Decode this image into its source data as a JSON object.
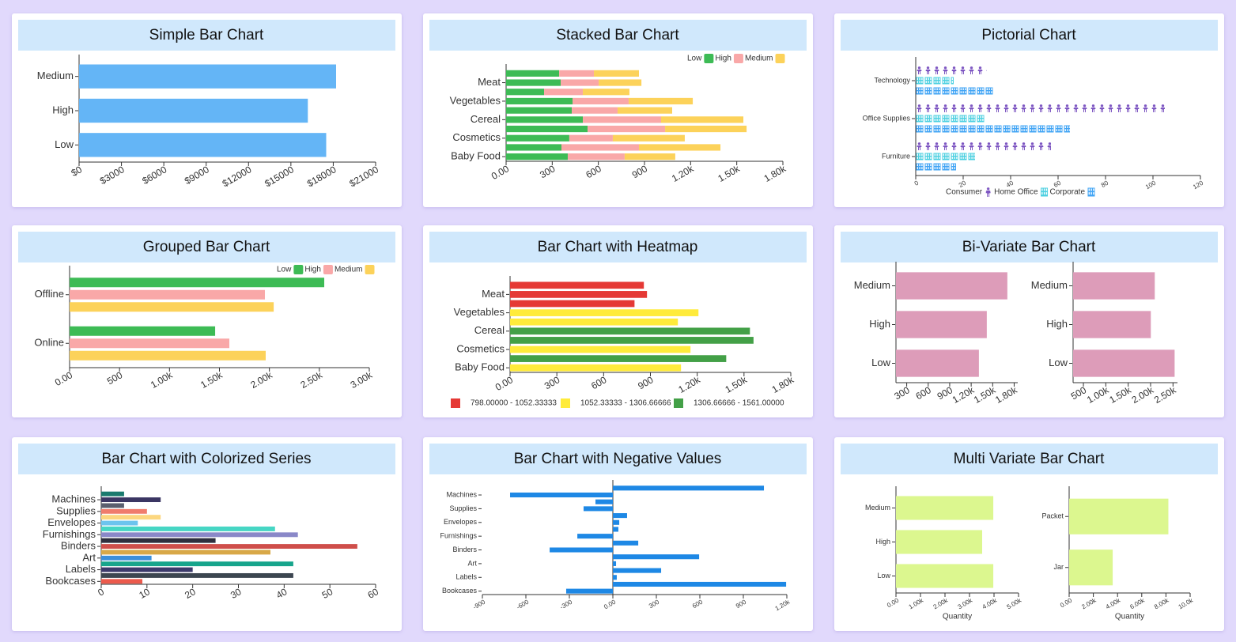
{
  "chart_data": [
    {
      "type": "bar",
      "title": "Simple Bar Chart",
      "categories": [
        "Medium",
        "High",
        "Low"
      ],
      "values": [
        18200,
        16200,
        17500
      ],
      "color": "#64b5f6",
      "xlim": [
        0,
        21000
      ],
      "xticks": [
        {
          "value": 0,
          "label": "$0"
        },
        {
          "value": 3000,
          "label": "$3000"
        },
        {
          "value": 6000,
          "label": "$6000"
        },
        {
          "value": 9000,
          "label": "$9000"
        },
        {
          "value": 12000,
          "label": "$12000"
        },
        {
          "value": 15000,
          "label": "$15000"
        },
        {
          "value": 18000,
          "label": "$18000"
        },
        {
          "value": 21000,
          "label": "$21000"
        }
      ]
    },
    {
      "type": "stacked_bar",
      "title": "Stacked Bar Chart",
      "categories": [
        null,
        "Meat",
        null,
        "Vegetables",
        null,
        "Cereal",
        null,
        "Cosmetics",
        null,
        "Baby Food"
      ],
      "series": [
        {
          "name": "Low",
          "color": "#3dbb55",
          "values": [
            345,
            355,
            247,
            432,
            427,
            499,
            530,
            411,
            360,
            401
          ]
        },
        {
          "name": "High",
          "color": "#f9a8a8",
          "values": [
            226,
            247,
            252,
            365,
            298,
            509,
            504,
            283,
            504,
            370
          ]
        },
        {
          "name": "Medium",
          "color": "#fcd25a",
          "values": [
            293,
            278,
            303,
            417,
            355,
            535,
            530,
            468,
            530,
            329
          ]
        }
      ],
      "xlim": [
        0,
        1800
      ],
      "xticks": [
        {
          "value": 0,
          "label": "0.00"
        },
        300,
        600,
        900,
        {
          "value": 1200,
          "label": "1.20k"
        },
        {
          "value": 1500,
          "label": "1.50k"
        },
        {
          "value": 1800,
          "label": "1.80k"
        }
      ]
    },
    {
      "type": "pictorial_bar",
      "title": "Pictorial Chart",
      "categories": [
        "Technology",
        "Office Supplies",
        "Furniture"
      ],
      "series": [
        {
          "name": "Consumer",
          "color": "#7e57c2",
          "values": [
            30,
            105,
            57
          ]
        },
        {
          "name": "Home Office",
          "color": "#4dd0e1",
          "values": [
            16,
            29,
            25
          ]
        },
        {
          "name": "Corporate",
          "color": "#42a5f5",
          "values": [
            33,
            65,
            17
          ]
        }
      ],
      "xlim": [
        0,
        120
      ],
      "xticks": [
        0,
        20,
        40,
        60,
        80,
        100,
        120
      ]
    },
    {
      "type": "grouped_bar",
      "title": "Grouped Bar Chart",
      "categories": [
        "Offline",
        "Online"
      ],
      "series": [
        {
          "name": "Low",
          "color": "#3dbb55",
          "values": [
            2549,
            1457
          ]
        },
        {
          "name": "High",
          "color": "#f9a8a8",
          "values": [
            1955,
            1599
          ]
        },
        {
          "name": "Medium",
          "color": "#fcd25a",
          "values": [
            2043,
            1963
          ]
        }
      ],
      "xlim": [
        0,
        3000
      ],
      "xticks": [
        {
          "value": 0,
          "label": "0.00"
        },
        500,
        {
          "value": 1000,
          "label": "1.00k"
        },
        {
          "value": 1500,
          "label": "1.50k"
        },
        {
          "value": 2000,
          "label": "2.00k"
        },
        {
          "value": 2500,
          "label": "2.50k"
        },
        {
          "value": 3000,
          "label": "3.00k"
        }
      ]
    },
    {
      "type": "heatmap_bar",
      "title": "Bar Chart with Heatmap",
      "categories": [
        null,
        "Meat",
        null,
        "Vegetables",
        null,
        "Cereal",
        null,
        "Cosmetics",
        null,
        "Baby Food"
      ],
      "values": [
        858,
        878,
        798,
        1208,
        1076,
        1538,
        1561,
        1157,
        1386,
        1096
      ],
      "colors": [
        "#e53935",
        "#e53935",
        "#e53935",
        "#ffeb3b",
        "#ffeb3b",
        "#43a047",
        "#43a047",
        "#ffeb3b",
        "#43a047",
        "#ffeb3b"
      ],
      "legend": [
        {
          "label": "798.00000 - 1052.33333",
          "color": "#e53935"
        },
        {
          "label": "1052.33333 - 1306.66666",
          "color": "#ffeb3b"
        },
        {
          "label": "1306.66666 - 1561.00000",
          "color": "#43a047"
        }
      ],
      "xlim": [
        0,
        1800
      ],
      "xticks": [
        {
          "value": 0,
          "label": "0.00"
        },
        300,
        600,
        900,
        {
          "value": 1200,
          "label": "1.20k"
        },
        {
          "value": 1500,
          "label": "1.50k"
        },
        {
          "value": 1800,
          "label": "1.80k"
        }
      ]
    },
    {
      "type": "bar",
      "title": "Bi-Variate Bar Chart",
      "color": "#dd9cb9",
      "panels": [
        {
          "categories": [
            "Medium",
            "High",
            "Low"
          ],
          "values": [
            1705,
            1418,
            1308
          ],
          "xlim": [
            150,
            1850
          ],
          "xticks": [
            300,
            600,
            900,
            {
              "value": 1200,
              "label": "1.20k"
            },
            {
              "value": 1500,
              "label": "1.50k"
            },
            {
              "value": 1800,
              "label": "1.80k"
            }
          ]
        },
        {
          "categories": [
            "Medium",
            "High",
            "Low"
          ],
          "values": [
            2093,
            2005,
            2536
          ],
          "xlim": [
            270,
            2600
          ],
          "xticks": [
            500,
            {
              "value": 1000,
              "label": "1.00k"
            },
            {
              "value": 1500,
              "label": "1.50k"
            },
            {
              "value": 2000,
              "label": "2.00k"
            },
            {
              "value": 2500,
              "label": "2.50k"
            }
          ]
        }
      ]
    },
    {
      "type": "bar",
      "title": "Bar Chart with Colorized Series",
      "categories": [
        null,
        "Machines",
        null,
        "Supplies",
        null,
        "Envelopes",
        null,
        "Furnishings",
        null,
        "Binders",
        null,
        "Art",
        null,
        "Labels",
        null,
        "Bookcases"
      ],
      "values": [
        5,
        13,
        5,
        10,
        13,
        8,
        38,
        43,
        25,
        56,
        37,
        11,
        42,
        20,
        42,
        9
      ],
      "colors": [
        "#1a7a6e",
        "#3b3663",
        "#5a5f6e",
        "#f07c6c",
        "#fcd77f",
        "#6cc4ee",
        "#46d6c4",
        "#8a88c8",
        "#2f2f3e",
        "#cf4e4a",
        "#d8a848",
        "#3b8fdb",
        "#17a58c",
        "#3c3a6b",
        "#3c4650",
        "#ec5a4c"
      ],
      "xlim": [
        0,
        60
      ],
      "xticks": [
        0,
        10,
        20,
        30,
        40,
        50,
        60
      ]
    },
    {
      "type": "bar",
      "title": "Bar Chart with Negative Values",
      "categories": [
        null,
        "Machines",
        null,
        "Supplies",
        null,
        "Envelopes",
        null,
        "Furnishings",
        null,
        "Binders",
        null,
        "Art",
        null,
        "Labels",
        null,
        "Bookcases"
      ],
      "values": [
        1042,
        -709,
        -120,
        -202,
        98,
        44,
        38,
        -245,
        175,
        -436,
        595,
        22,
        333,
        27,
        1195,
        -322
      ],
      "color": "#1e88e5",
      "xlim": [
        -900,
        1200
      ],
      "xticks": [
        -900,
        -600,
        -300,
        {
          "value": 0,
          "label": "0.00"
        },
        300,
        600,
        900,
        {
          "value": 1200,
          "label": "1.20k"
        }
      ]
    },
    {
      "type": "bar",
      "title": "Multi Variate Bar Chart",
      "color": "#dcf78f",
      "panels": [
        {
          "categories": [
            "Medium",
            "High",
            "Low"
          ],
          "values": [
            3970,
            3516,
            3970
          ],
          "xlim": [
            0,
            5000
          ],
          "xlabel": "Quantity",
          "xticks": [
            {
              "value": 0,
              "label": "0.00"
            },
            {
              "value": 1000,
              "label": "1.00k"
            },
            {
              "value": 2000,
              "label": "2.00k"
            },
            {
              "value": 3000,
              "label": "3.00k"
            },
            {
              "value": 4000,
              "label": "4.00k"
            },
            {
              "value": 5000,
              "label": "5.00k"
            }
          ]
        },
        {
          "categories": [
            "Packet",
            "Jar"
          ],
          "values": [
            8200,
            3600
          ],
          "xlim": [
            0,
            10000
          ],
          "xlabel": "Quantity",
          "xticks": [
            {
              "value": 0,
              "label": "0.00"
            },
            {
              "value": 2000,
              "label": "2.00k"
            },
            {
              "value": 4000,
              "label": "4.00k"
            },
            {
              "value": 6000,
              "label": "6.00k"
            },
            {
              "value": 8000,
              "label": "8.00k"
            },
            {
              "value": 10000,
              "label": "10.0k"
            }
          ]
        }
      ]
    }
  ]
}
